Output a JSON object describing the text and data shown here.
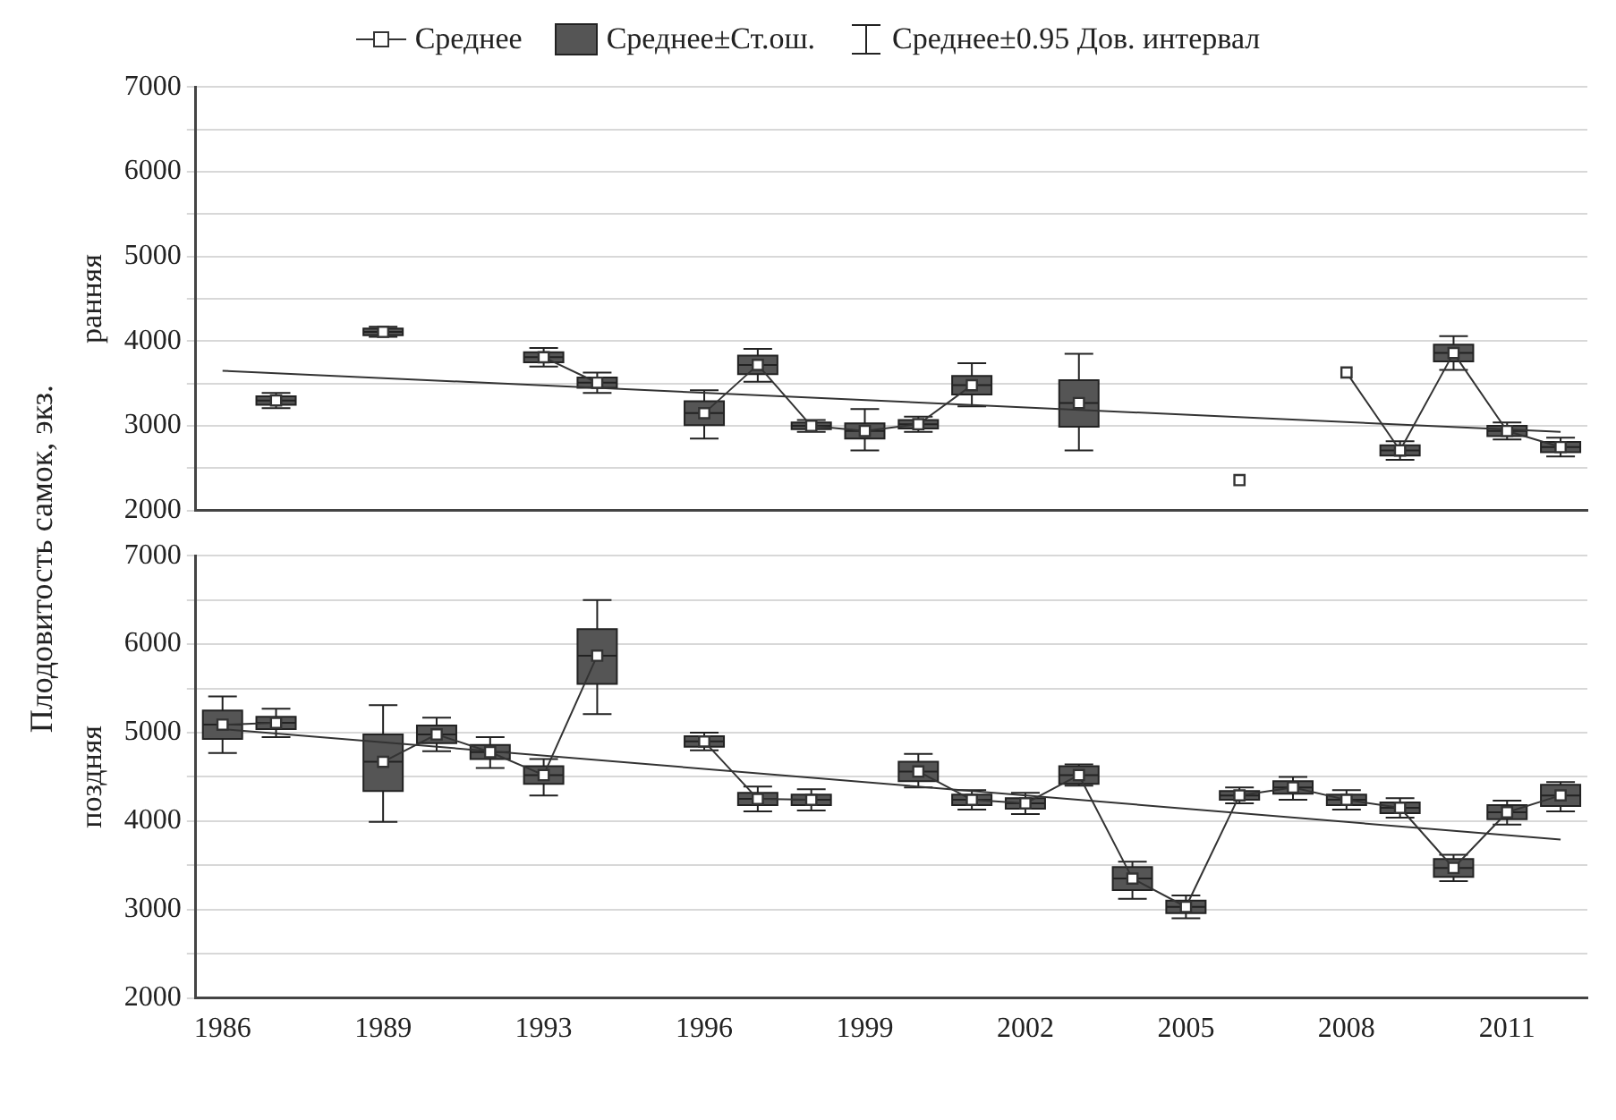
{
  "chart_data": [
    {
      "type": "box",
      "ylabel": "ранняя",
      "legend": "top",
      "tick_labels": "y",
      "grid": "y",
      "ylim": [
        2000,
        7000
      ],
      "yticks": [
        2000,
        {
          "value": 2500,
          "label": null
        },
        3000,
        {
          "value": 3500,
          "label": null
        },
        4000,
        {
          "value": 4500,
          "label": null
        },
        5000,
        {
          "value": 5500,
          "label": null
        },
        6000,
        {
          "value": 6500,
          "label": null
        },
        7000
      ],
      "annotations": [
        "Среднее±0.95 Дов. интервал",
        "Плодовитость самок, экз."
      ],
      "categories": [
        "1986",
        null,
        null,
        "1989",
        null,
        null,
        "1993",
        null,
        null,
        "1996",
        null,
        null,
        "1999",
        null,
        null,
        "2002",
        null,
        null,
        "2005",
        null,
        null,
        "2008",
        null,
        null,
        "2011",
        null
      ],
      "series": [
        {
          "name": "Среднее",
          "type": "line",
          "marker": "square",
          "color": "#333333",
          "values": [
            null,
            3300,
            null,
            4110,
            null,
            null,
            3810,
            3510,
            null,
            3150,
            3720,
            3000,
            2940,
            3020,
            3480,
            null,
            3270,
            null,
            null,
            2360,
            null,
            3630,
            2710,
            3860,
            2940,
            2750
          ]
        },
        {
          "name": "Среднее±Ст.ош.",
          "color": "#555555",
          "boxes": [
            null,
            {
              "low": 3210,
              "q1": 3250,
              "median": 3300,
              "q3": 3350,
              "high": 3390
            },
            null,
            {
              "low": 4050,
              "q1": 4070,
              "median": 4110,
              "q3": 4150,
              "high": 4170
            },
            null,
            null,
            {
              "low": 3700,
              "q1": 3750,
              "median": 3810,
              "q3": 3870,
              "high": 3920
            },
            {
              "low": 3390,
              "q1": 3450,
              "median": 3510,
              "q3": 3570,
              "high": 3630
            },
            null,
            {
              "low": 2850,
              "q1": 3010,
              "median": 3150,
              "q3": 3290,
              "high": 3420
            },
            {
              "low": 3520,
              "q1": 3610,
              "median": 3720,
              "q3": 3830,
              "high": 3910
            },
            {
              "low": 2930,
              "q1": 2960,
              "median": 3000,
              "q3": 3040,
              "high": 3070
            },
            {
              "low": 2710,
              "q1": 2850,
              "median": 2940,
              "q3": 3030,
              "high": 3200
            },
            {
              "low": 2930,
              "q1": 2970,
              "median": 3020,
              "q3": 3070,
              "high": 3110
            },
            {
              "low": 3230,
              "q1": 3370,
              "median": 3480,
              "q3": 3590,
              "high": 3740
            },
            null,
            {
              "low": 2710,
              "q1": 2990,
              "median": 3270,
              "q3": 3540,
              "high": 3850
            },
            null,
            null,
            null,
            null,
            null,
            {
              "low": 2600,
              "q1": 2650,
              "median": 2710,
              "q3": 2770,
              "high": 2820
            },
            {
              "low": 3660,
              "q1": 3760,
              "median": 3860,
              "q3": 3960,
              "high": 4060
            },
            {
              "low": 2840,
              "q1": 2880,
              "median": 2940,
              "q3": 3000,
              "high": 3040
            },
            {
              "low": 2640,
              "q1": 2690,
              "median": 2750,
              "q3": 2810,
              "high": 2860
            }
          ]
        },
        {
          "type": "line",
          "marker": "none",
          "color": "#333333",
          "values": [
            3650,
            null,
            null,
            null,
            null,
            null,
            null,
            null,
            null,
            null,
            null,
            null,
            null,
            null,
            null,
            null,
            null,
            null,
            null,
            null,
            null,
            null,
            null,
            null,
            null,
            2930
          ]
        }
      ]
    },
    {
      "type": "box",
      "ylabel": "поздняя",
      "grid": "y",
      "ylim": [
        2000,
        7000
      ],
      "yticks": [
        2000,
        {
          "value": 2500,
          "label": null
        },
        3000,
        {
          "value": 3500,
          "label": null
        },
        4000,
        {
          "value": 4500,
          "label": null
        },
        5000,
        {
          "value": 5500,
          "label": null
        },
        6000,
        {
          "value": 6500,
          "label": null
        },
        7000
      ],
      "categories": [
        "1986",
        null,
        null,
        "1989",
        null,
        null,
        "1993",
        null,
        null,
        "1996",
        null,
        null,
        "1999",
        null,
        null,
        "2002",
        null,
        null,
        "2005",
        null,
        null,
        "2008",
        null,
        null,
        "2011",
        null
      ],
      "series": [
        {
          "type": "line",
          "marker": "square",
          "color": "#333333",
          "values": [
            5090,
            5110,
            null,
            4670,
            4980,
            4780,
            4520,
            5870,
            null,
            4900,
            4250,
            4240,
            null,
            4560,
            4240,
            4200,
            4520,
            3350,
            3030,
            4290,
            4380,
            4240,
            4150,
            3470,
            4100,
            4290
          ]
        },
        {
          "color": "#555555",
          "boxes": [
            {
              "low": 4770,
              "q1": 4930,
              "median": 5090,
              "q3": 5250,
              "high": 5410
            },
            {
              "low": 4950,
              "q1": 5040,
              "median": 5110,
              "q3": 5180,
              "high": 5270
            },
            null,
            {
              "low": 3990,
              "q1": 4340,
              "median": 4670,
              "q3": 4980,
              "high": 5310
            },
            {
              "low": 4790,
              "q1": 4880,
              "median": 4980,
              "q3": 5080,
              "high": 5170
            },
            {
              "low": 4600,
              "q1": 4700,
              "median": 4780,
              "q3": 4860,
              "high": 4950
            },
            {
              "low": 4290,
              "q1": 4420,
              "median": 4520,
              "q3": 4620,
              "high": 4700
            },
            {
              "low": 5210,
              "q1": 5550,
              "median": 5870,
              "q3": 6170,
              "high": 6500
            },
            null,
            {
              "low": 4800,
              "q1": 4840,
              "median": 4900,
              "q3": 4960,
              "high": 5000
            },
            {
              "low": 4110,
              "q1": 4180,
              "median": 4250,
              "q3": 4320,
              "high": 4390
            },
            {
              "low": 4120,
              "q1": 4180,
              "median": 4240,
              "q3": 4300,
              "high": 4360
            },
            null,
            {
              "low": 4380,
              "q1": 4450,
              "median": 4560,
              "q3": 4670,
              "high": 4760
            },
            {
              "low": 4130,
              "q1": 4180,
              "median": 4240,
              "q3": 4300,
              "high": 4350
            },
            {
              "low": 4080,
              "q1": 4140,
              "median": 4200,
              "q3": 4260,
              "high": 4320
            },
            {
              "low": 4400,
              "q1": 4420,
              "median": 4520,
              "q3": 4620,
              "high": 4640
            },
            {
              "low": 3120,
              "q1": 3220,
              "median": 3350,
              "q3": 3480,
              "high": 3540
            },
            {
              "low": 2900,
              "q1": 2960,
              "median": 3030,
              "q3": 3100,
              "high": 3160
            },
            {
              "low": 4200,
              "q1": 4240,
              "median": 4290,
              "q3": 4340,
              "high": 4380
            },
            {
              "low": 4240,
              "q1": 4310,
              "median": 4380,
              "q3": 4450,
              "high": 4500
            },
            {
              "low": 4130,
              "q1": 4180,
              "median": 4240,
              "q3": 4300,
              "high": 4350
            },
            {
              "low": 4040,
              "q1": 4090,
              "median": 4150,
              "q3": 4210,
              "high": 4260
            },
            {
              "low": 3320,
              "q1": 3370,
              "median": 3470,
              "q3": 3570,
              "high": 3620
            },
            {
              "low": 3960,
              "q1": 4020,
              "median": 4100,
              "q3": 4180,
              "high": 4230
            },
            {
              "low": 4110,
              "q1": 4170,
              "median": 4290,
              "q3": 4410,
              "high": 4440
            }
          ]
        },
        {
          "type": "line",
          "marker": "none",
          "color": "#333333",
          "values": [
            5040,
            null,
            null,
            null,
            null,
            null,
            null,
            null,
            null,
            null,
            null,
            null,
            null,
            null,
            null,
            null,
            null,
            null,
            null,
            null,
            null,
            null,
            null,
            null,
            null,
            3790
          ]
        }
      ]
    }
  ]
}
